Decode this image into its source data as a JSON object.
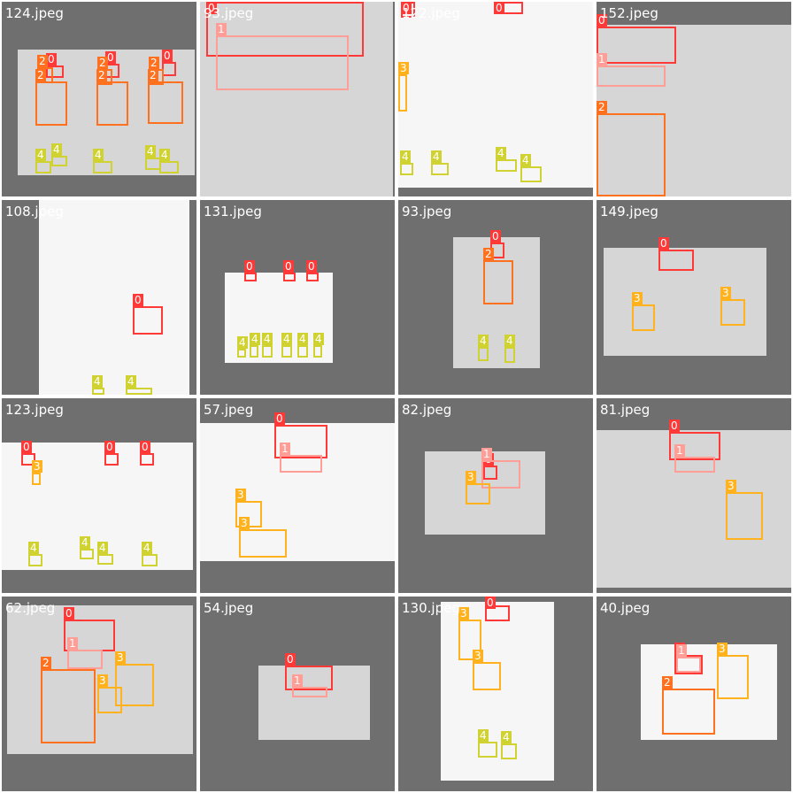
{
  "grid": {
    "tiles": [
      {
        "label": "124.jpeg",
        "photo": [
          18,
          54,
          218,
          196
        ],
        "light": false,
        "boxes": [
          [
            0,
            50,
            72,
            70,
            86
          ],
          [
            0,
            117,
            70,
            133,
            86
          ],
          [
            0,
            181,
            68,
            197,
            84
          ],
          [
            2,
            40,
            74,
            58,
            92
          ],
          [
            2,
            108,
            76,
            125,
            94
          ],
          [
            2,
            166,
            76,
            183,
            94
          ],
          [
            2,
            38,
            90,
            74,
            140
          ],
          [
            2,
            107,
            90,
            143,
            140
          ],
          [
            2,
            165,
            90,
            205,
            138
          ],
          [
            4,
            38,
            180,
            56,
            194
          ],
          [
            4,
            56,
            174,
            74,
            186
          ],
          [
            4,
            103,
            180,
            125,
            194
          ],
          [
            4,
            162,
            176,
            180,
            190
          ],
          [
            4,
            178,
            180,
            200,
            194
          ]
        ]
      },
      {
        "label": "93.jpeg",
        "photo": [
          0,
          0,
          218,
          220
        ],
        "light": false,
        "boxes": [
          [
            0,
            7,
            0,
            185,
            62
          ],
          [
            1,
            18,
            38,
            168,
            100
          ]
        ]
      },
      {
        "label": "122.jpeg",
        "photo": [
          0,
          0,
          220,
          210
        ],
        "light": true,
        "boxes": [
          [
            0,
            3,
            0,
            19,
            18
          ],
          [
            0,
            108,
            0,
            141,
            14
          ],
          [
            3,
            0,
            82,
            10,
            124
          ],
          [
            4,
            2,
            182,
            17,
            196
          ],
          [
            4,
            37,
            182,
            57,
            196
          ],
          [
            4,
            110,
            178,
            134,
            192
          ],
          [
            4,
            138,
            186,
            162,
            204
          ]
        ]
      },
      {
        "label": "152.jpeg",
        "photo": [
          0,
          26,
          220,
          220
        ],
        "light": false,
        "boxes": [
          [
            0,
            0,
            28,
            90,
            70
          ],
          [
            1,
            0,
            72,
            78,
            96
          ],
          [
            2,
            0,
            126,
            78,
            222
          ]
        ]
      },
      {
        "label": "108.jpeg",
        "photo": [
          42,
          0,
          212,
          220
        ],
        "light": true,
        "boxes": [
          [
            0,
            150,
            346,
            184,
            378
          ],
          [
            4,
            104,
            438,
            118,
            446
          ],
          [
            4,
            142,
            438,
            172,
            446
          ]
        ]
      },
      {
        "label": "131.jpeg",
        "photo": [
          28,
          82,
          150,
          184
        ],
        "light": true,
        "boxes": [
          [
            0,
            276,
            308,
            290,
            318
          ],
          [
            0,
            320,
            308,
            334,
            318
          ],
          [
            0,
            346,
            308,
            360,
            318
          ],
          [
            4,
            268,
            394,
            278,
            404
          ],
          [
            4,
            282,
            390,
            292,
            404
          ],
          [
            4,
            296,
            390,
            308,
            404
          ],
          [
            4,
            318,
            390,
            330,
            404
          ],
          [
            4,
            336,
            390,
            348,
            404
          ],
          [
            4,
            354,
            390,
            364,
            404
          ]
        ]
      },
      {
        "label": "93.jpeg",
        "photo": [
          62,
          42,
          160,
          190
        ],
        "light": false,
        "boxes": [
          [
            0,
            554,
            274,
            570,
            292
          ],
          [
            2,
            546,
            294,
            580,
            344
          ],
          [
            4,
            540,
            392,
            552,
            408
          ],
          [
            4,
            570,
            392,
            582,
            410
          ]
        ]
      },
      {
        "label": "149.jpeg",
        "photo": [
          8,
          54,
          192,
          176
        ],
        "light": false,
        "boxes": [
          [
            0,
            744,
            282,
            784,
            306
          ],
          [
            3,
            714,
            344,
            740,
            374
          ],
          [
            3,
            814,
            338,
            842,
            368
          ]
        ]
      },
      {
        "label": "123.jpeg",
        "photo": [
          0,
          50,
          216,
          194
        ],
        "light": true,
        "boxes": [
          [
            0,
            24,
            512,
            40,
            526
          ],
          [
            0,
            118,
            512,
            134,
            526
          ],
          [
            0,
            158,
            512,
            174,
            526
          ],
          [
            3,
            36,
            534,
            46,
            548
          ],
          [
            4,
            32,
            626,
            48,
            640
          ],
          [
            4,
            90,
            620,
            106,
            632
          ],
          [
            4,
            110,
            626,
            128,
            638
          ],
          [
            4,
            160,
            626,
            178,
            640
          ]
        ]
      },
      {
        "label": "57.jpeg",
        "photo": [
          0,
          28,
          220,
          184
        ],
        "light": true,
        "boxes": [
          [
            0,
            310,
            480,
            370,
            518
          ],
          [
            1,
            316,
            514,
            364,
            534
          ],
          [
            3,
            266,
            566,
            296,
            596
          ],
          [
            3,
            270,
            598,
            324,
            630
          ]
        ]
      },
      {
        "label": "82.jpeg",
        "photo": [
          30,
          60,
          166,
          154
        ],
        "light": false,
        "boxes": [
          [
            0,
            546,
            526,
            562,
            542
          ],
          [
            1,
            544,
            520,
            588,
            552
          ],
          [
            3,
            526,
            546,
            554,
            570
          ]
        ]
      },
      {
        "label": "81.jpeg",
        "photo": [
          0,
          36,
          220,
          214
        ],
        "light": false,
        "boxes": [
          [
            0,
            756,
            488,
            814,
            520
          ],
          [
            1,
            762,
            516,
            808,
            534
          ],
          [
            3,
            820,
            556,
            862,
            610
          ]
        ]
      },
      {
        "label": "62.jpeg",
        "photo": [
          6,
          10,
          216,
          178
        ],
        "light": false,
        "boxes": [
          [
            0,
            72,
            700,
            130,
            736
          ],
          [
            1,
            76,
            734,
            116,
            756
          ],
          [
            2,
            46,
            756,
            108,
            840
          ],
          [
            3,
            130,
            750,
            174,
            798
          ],
          [
            3,
            110,
            776,
            138,
            806
          ]
        ]
      },
      {
        "label": "54.jpeg",
        "photo": [
          66,
          78,
          192,
          162
        ],
        "light": false,
        "boxes": [
          [
            0,
            322,
            752,
            376,
            780
          ],
          [
            1,
            330,
            776,
            370,
            788
          ]
        ]
      },
      {
        "label": "130.jpeg",
        "photo": [
          48,
          6,
          176,
          208
        ],
        "light": true,
        "boxes": [
          [
            0,
            548,
            684,
            576,
            702
          ],
          [
            3,
            518,
            700,
            544,
            746
          ],
          [
            3,
            534,
            748,
            566,
            780
          ],
          [
            4,
            540,
            838,
            562,
            856
          ],
          [
            4,
            566,
            840,
            584,
            858
          ]
        ]
      },
      {
        "label": "40.jpeg",
        "photo": [
          50,
          54,
          204,
          162
        ],
        "light": true,
        "boxes": [
          [
            0,
            762,
            740,
            794,
            762
          ],
          [
            1,
            764,
            742,
            792,
            760
          ],
          [
            2,
            748,
            778,
            808,
            830
          ],
          [
            3,
            810,
            740,
            846,
            790
          ]
        ]
      }
    ]
  }
}
